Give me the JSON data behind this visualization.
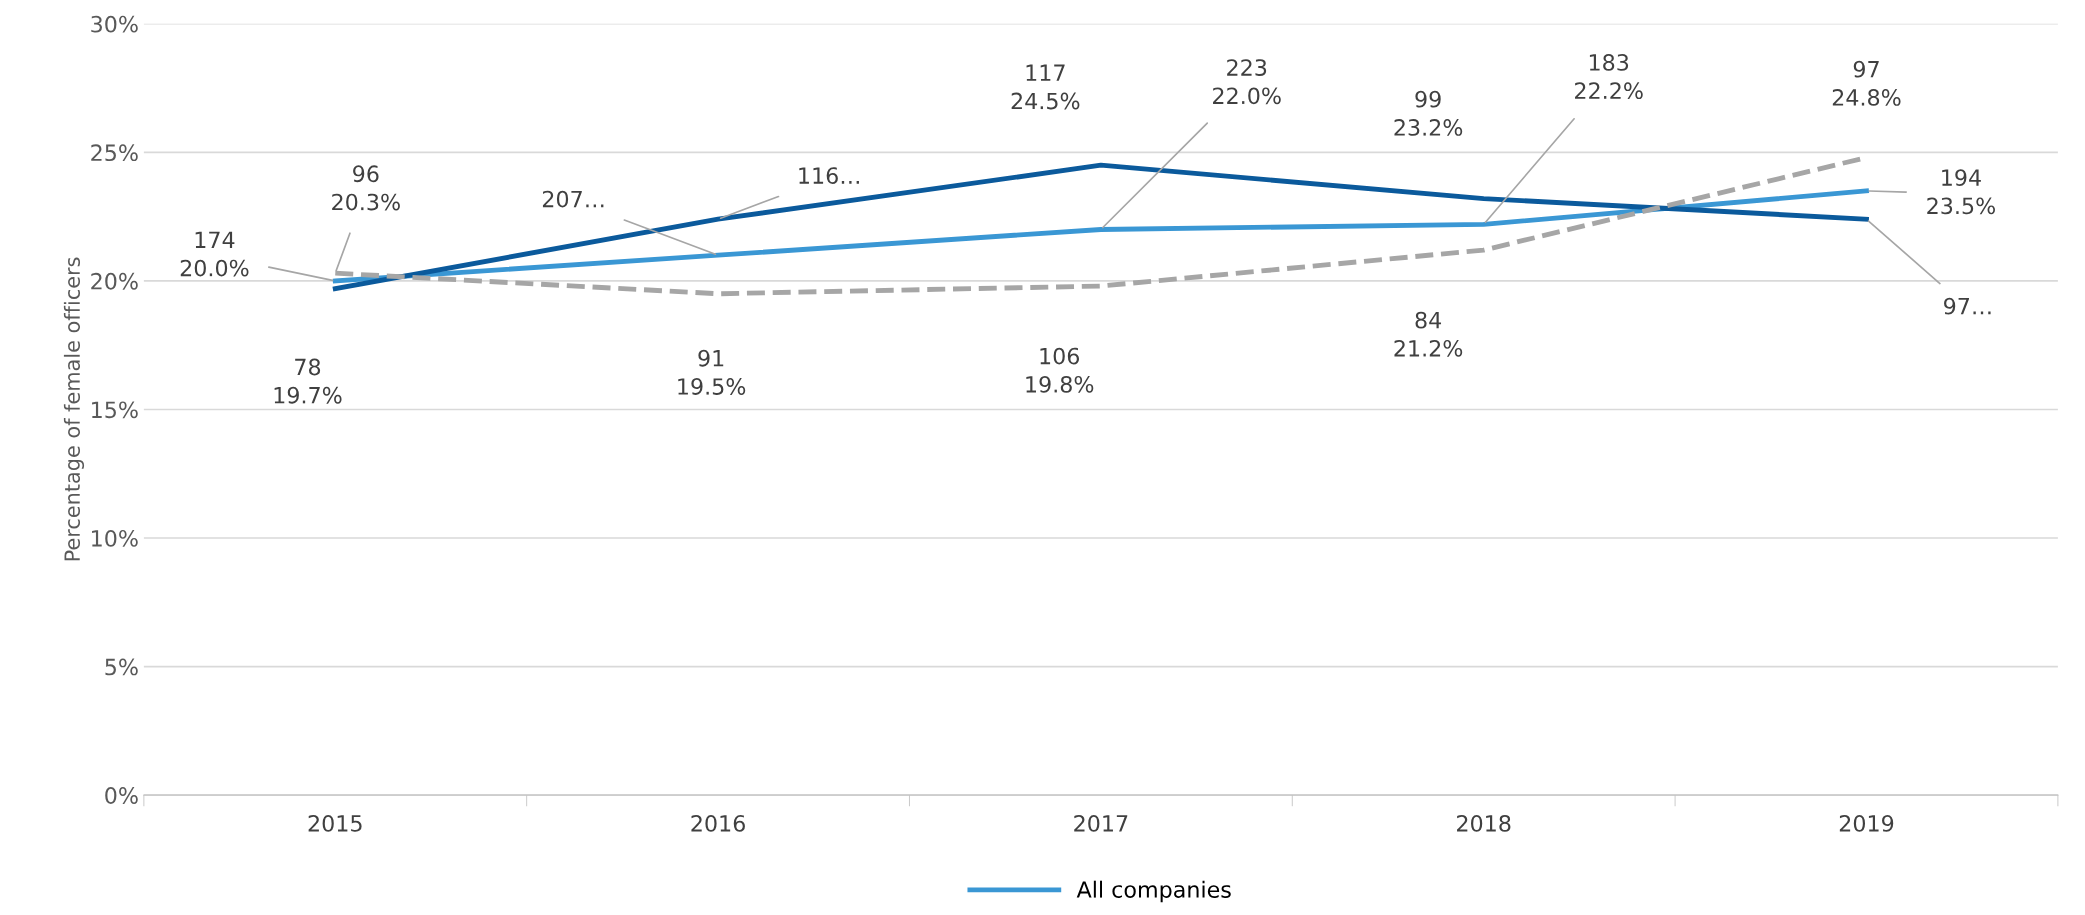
{
  "chart_data": {
    "type": "line",
    "ylabel": "Percentage of female officers",
    "categories": [
      "2015",
      "2016",
      "2017",
      "2018",
      "2019"
    ],
    "series": [
      {
        "name": "All companies",
        "color": "#3a97d4",
        "values": [
          20.0,
          21.0,
          22.0,
          22.2,
          23.5
        ],
        "value_labels": [
          "174\n20.0%",
          "207…",
          "223\n22.0%",
          "183\n22.2%",
          "194\n23.5%"
        ]
      },
      {
        "color": "#0b5a9c",
        "values": [
          19.7,
          22.4,
          24.5,
          23.2,
          22.4
        ],
        "value_labels": [
          "78\n19.7%",
          "116…",
          "117\n24.5%",
          "99\n23.2%",
          "97…"
        ]
      },
      {
        "color": "#a6a6a6",
        "line_style": "dashed",
        "values": [
          20.3,
          19.5,
          19.8,
          21.2,
          24.8
        ],
        "value_labels": [
          "96\n20.3%",
          "91\n19.5%",
          "106\n19.8%",
          "84\n21.2%",
          "97\n24.8%"
        ]
      }
    ],
    "ylim": [
      0,
      30
    ],
    "yticks": [
      {
        "value": 0,
        "label": "0%"
      },
      {
        "value": 5,
        "label": "5%"
      },
      {
        "value": 10,
        "label": "10%"
      },
      {
        "value": 15,
        "label": "15%"
      },
      {
        "value": 20,
        "label": "20%"
      },
      {
        "value": 25,
        "label": "25%"
      },
      {
        "value": 30,
        "label": "30%"
      }
    ],
    "grid": "y",
    "legend": "bottom",
    "line_style": "solid"
  }
}
